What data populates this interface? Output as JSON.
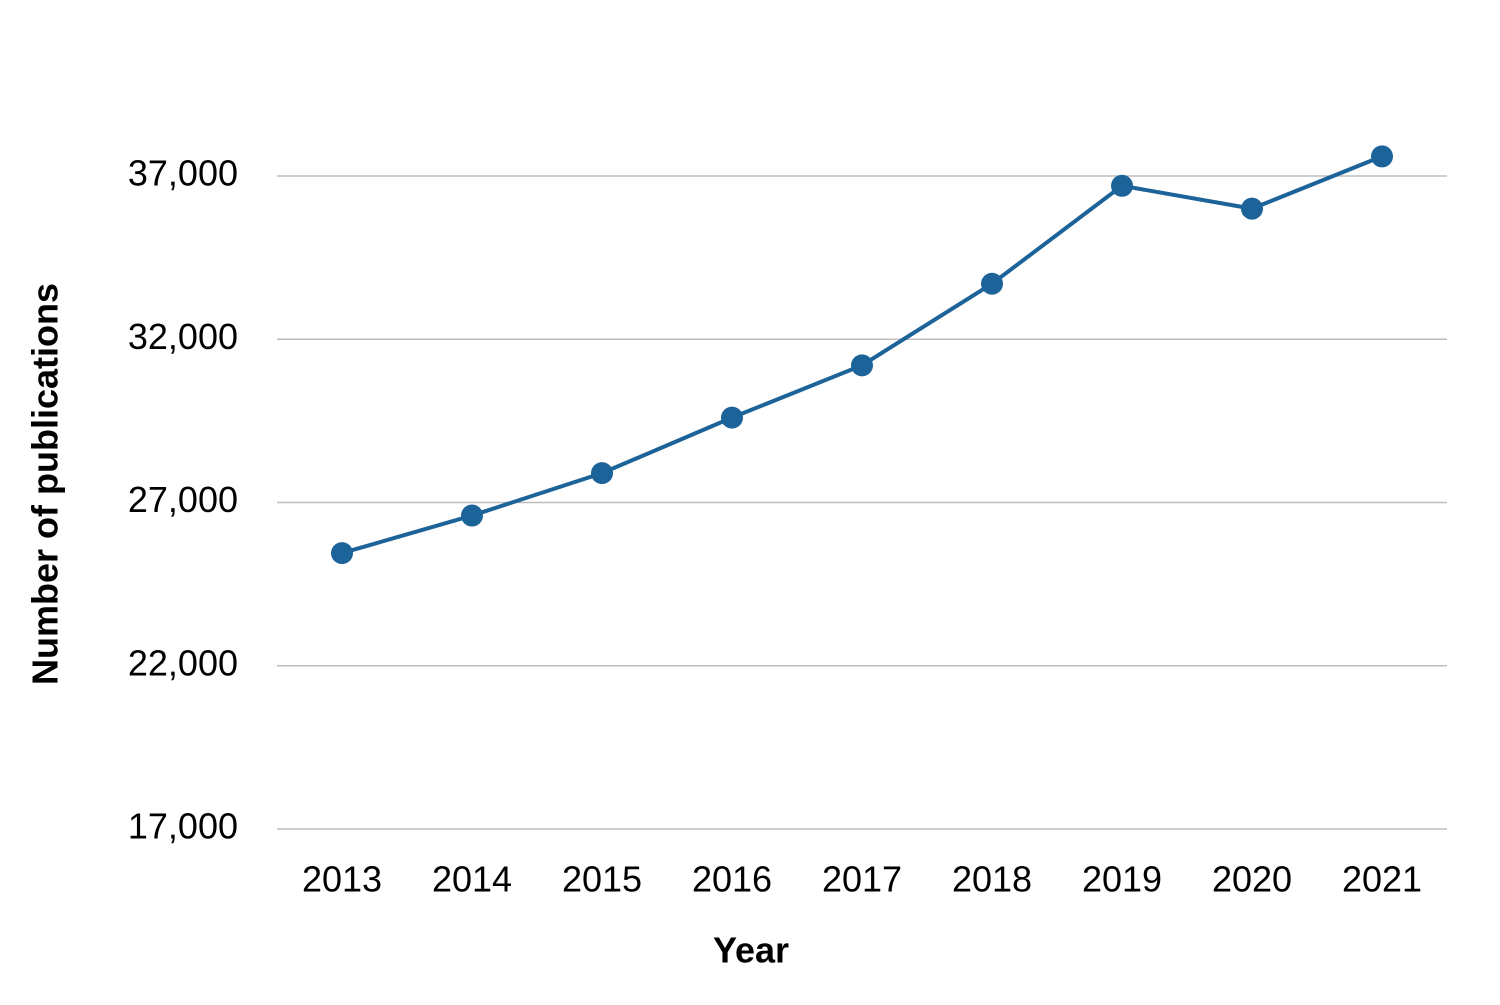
{
  "chart_data": {
    "type": "line",
    "x_label": "Year",
    "y_label": "Number of publications",
    "categories": [
      "2013",
      "2014",
      "2015",
      "2016",
      "2017",
      "2018",
      "2019",
      "2020",
      "2021"
    ],
    "series": [
      {
        "color": "#1c6399",
        "values": [
          25450,
          26600,
          27900,
          29600,
          31200,
          33700,
          36700,
          36000,
          37600
        ]
      }
    ],
    "ylim": [
      17000,
      40000
    ],
    "yticks": [
      {
        "value": 17000,
        "label": "17,000"
      },
      {
        "value": 22000,
        "label": "22,000"
      },
      {
        "value": 27000,
        "label": "27,000"
      },
      {
        "value": 32000,
        "label": "32,000"
      },
      {
        "value": 37000,
        "label": "37,000"
      }
    ],
    "grid": true
  }
}
